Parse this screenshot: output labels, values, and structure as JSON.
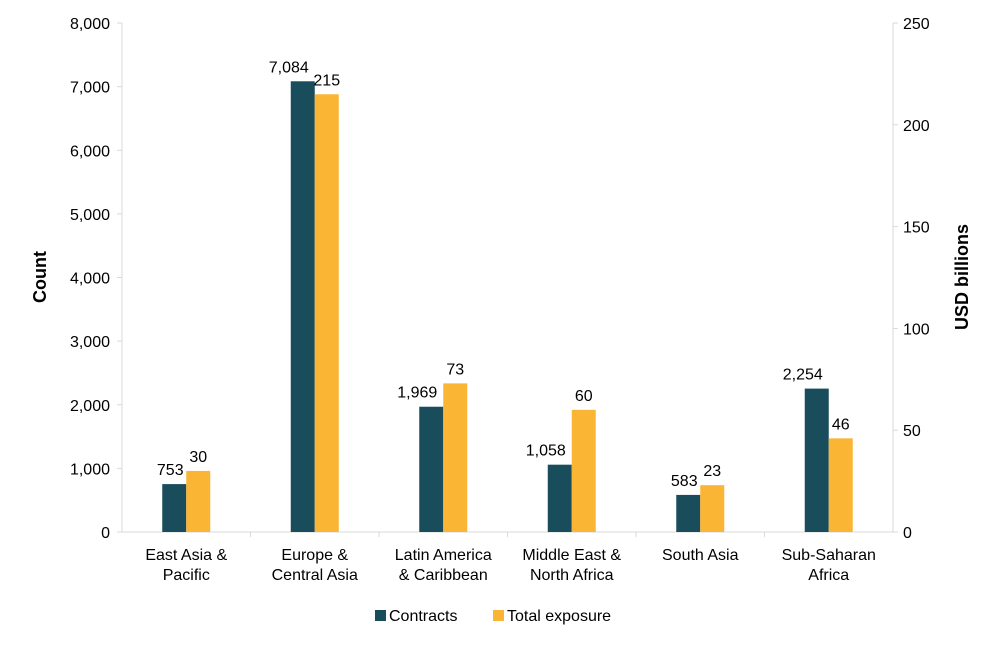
{
  "chart_data": {
    "type": "bar",
    "categories": [
      [
        "East Asia &",
        "Pacific"
      ],
      [
        "Europe &",
        "Central Asia"
      ],
      [
        "Latin America",
        "& Caribbean"
      ],
      [
        "Middle East &",
        "North Africa"
      ],
      [
        "South Asia"
      ],
      [
        "Sub-Saharan",
        "Africa"
      ]
    ],
    "series": [
      {
        "name": "Contracts",
        "axis": "left",
        "color": "#1a4d5c",
        "values": [
          753,
          7084,
          1969,
          1058,
          583,
          2254
        ],
        "labels": [
          "753",
          "7,084",
          "1,969",
          "1,058",
          "583",
          "2,254"
        ]
      },
      {
        "name": "Total exposure",
        "axis": "right",
        "color": "#fbb535",
        "values": [
          30,
          215,
          73,
          60,
          23,
          46
        ],
        "labels": [
          "30",
          "215",
          "73",
          "60",
          "23",
          "46"
        ]
      }
    ],
    "y_left": {
      "label": "Count",
      "range": [
        0,
        8000
      ],
      "ticks": [
        0,
        1000,
        2000,
        3000,
        4000,
        5000,
        6000,
        7000,
        8000
      ],
      "tick_labels": [
        "0",
        "1,000",
        "2,000",
        "3,000",
        "4,000",
        "5,000",
        "6,000",
        "7,000",
        "8,000"
      ]
    },
    "y_right": {
      "label": "USD billions",
      "range": [
        0,
        250
      ],
      "ticks": [
        0,
        50,
        100,
        150,
        200,
        250
      ],
      "tick_labels": [
        "0",
        "50",
        "100",
        "150",
        "200",
        "250"
      ]
    },
    "grid": false,
    "legend": "bottom",
    "axis_color": "#d9d9d9"
  }
}
